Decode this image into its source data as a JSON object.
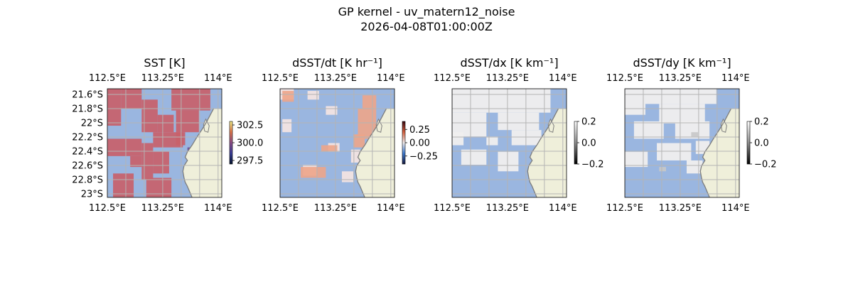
{
  "figure": {
    "title": "GP kernel - uv_matern12_noise",
    "subtitle": "2026-04-08T01:00:00Z"
  },
  "colors": {
    "ocean_mask": "#9ab6e0",
    "land": "#efefda",
    "coast": "#7d7d7d",
    "grid": "#b4b4b4"
  },
  "chart_data": [
    {
      "type": "heatmap",
      "title": "SST [K]",
      "xticks": [
        "112.5°E",
        "113.25°E",
        "114°E"
      ],
      "xtick_values": [
        112.5,
        113.25,
        114.0
      ],
      "yticks": [
        "21.6°S",
        "21.8°S",
        "22°S",
        "22.2°S",
        "22.4°S",
        "22.6°S",
        "22.8°S",
        "23°S"
      ],
      "ytick_values": [
        -21.6,
        -21.8,
        -22.0,
        -22.2,
        -22.4,
        -22.6,
        -22.8,
        -23.0
      ],
      "xlim": [
        112.5,
        114.05
      ],
      "ylim": [
        -23.05,
        -21.52
      ],
      "show_left_yticks": true,
      "colormap": "thermal",
      "clim": [
        297.0,
        303.0
      ],
      "colorbar_ticks": [
        "302.5",
        "300.0",
        "297.5"
      ],
      "colorbar_tick_values": [
        302.5,
        300.0,
        297.5
      ]
    },
    {
      "type": "heatmap",
      "title": "dSST/dt [K hr⁻¹]",
      "xticks": [
        "112.5°E",
        "113.25°E",
        "114°E"
      ],
      "xtick_values": [
        112.5,
        113.25,
        114.0
      ],
      "xlim": [
        112.5,
        114.05
      ],
      "ylim": [
        -23.05,
        -21.52
      ],
      "show_left_yticks": false,
      "colormap": "balance",
      "clim": [
        -0.4,
        0.4
      ],
      "colorbar_ticks": [
        "0.25",
        "0.00",
        "−0.25"
      ],
      "colorbar_tick_values": [
        0.25,
        0.0,
        -0.25
      ]
    },
    {
      "type": "heatmap",
      "title": "dSST/dx [K km⁻¹]",
      "xticks": [
        "112.5°E",
        "113.25°E",
        "114°E"
      ],
      "xtick_values": [
        112.5,
        113.25,
        114.0
      ],
      "xlim": [
        112.5,
        114.05
      ],
      "ylim": [
        -23.05,
        -21.52
      ],
      "show_left_yticks": false,
      "colormap": "gray",
      "clim": [
        -0.2,
        0.2
      ],
      "colorbar_ticks": [
        "0.2",
        "0.0",
        "−0.2"
      ],
      "colorbar_tick_values": [
        0.2,
        0.0,
        -0.2
      ]
    },
    {
      "type": "heatmap",
      "title": "dSST/dy [K km⁻¹]",
      "xticks": [
        "112.5°E",
        "113.25°E",
        "114°E"
      ],
      "xtick_values": [
        112.5,
        113.25,
        114.0
      ],
      "xlim": [
        112.5,
        114.05
      ],
      "ylim": [
        -23.05,
        -21.52
      ],
      "show_left_yticks": false,
      "colormap": "gray",
      "clim": [
        -0.2,
        0.2
      ],
      "colorbar_ticks": [
        "0.2",
        "0.0",
        "−0.2"
      ],
      "colorbar_tick_values": [
        0.2,
        0.0,
        -0.2
      ]
    }
  ]
}
